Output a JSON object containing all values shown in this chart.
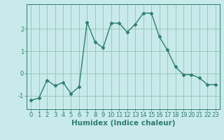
{
  "x": [
    0,
    1,
    2,
    3,
    4,
    5,
    6,
    7,
    8,
    9,
    10,
    11,
    12,
    13,
    14,
    15,
    16,
    17,
    18,
    19,
    20,
    21,
    22,
    23
  ],
  "y": [
    -1.2,
    -1.1,
    -0.3,
    -0.55,
    -0.4,
    -0.9,
    -0.6,
    2.3,
    1.4,
    1.15,
    2.25,
    2.25,
    1.85,
    2.2,
    2.7,
    2.7,
    1.65,
    1.05,
    0.3,
    -0.05,
    -0.05,
    -0.2,
    -0.5,
    -0.5
  ],
  "title": "",
  "xlabel": "Humidex (Indice chaleur)",
  "ylabel": "",
  "xlim": [
    -0.5,
    23.5
  ],
  "ylim": [
    -1.6,
    3.1
  ],
  "yticks": [
    -1,
    0,
    1,
    2
  ],
  "xticks": [
    0,
    1,
    2,
    3,
    4,
    5,
    6,
    7,
    8,
    9,
    10,
    11,
    12,
    13,
    14,
    15,
    16,
    17,
    18,
    19,
    20,
    21,
    22,
    23
  ],
  "line_color": "#2e7d6e",
  "marker": "D",
  "marker_size": 2.5,
  "bg_color": "#c8eaea",
  "grid_color": "#88bbaa",
  "xlabel_fontsize": 7.5,
  "tick_fontsize": 6.0,
  "line_width": 1.0
}
